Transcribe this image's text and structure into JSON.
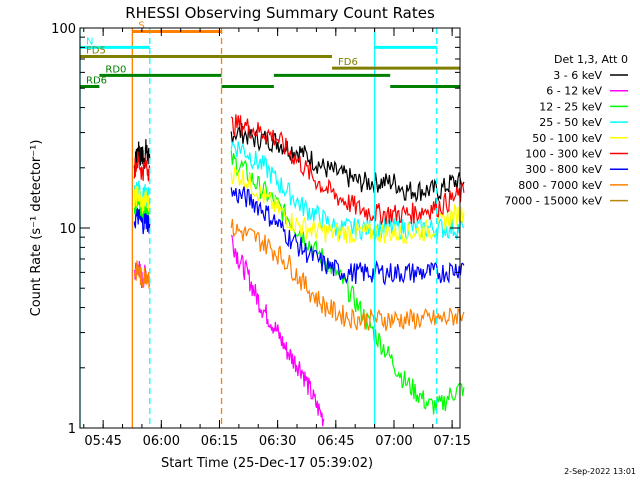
{
  "chart_data": {
    "type": "line",
    "title": "RHESSI Observing Summary Count Rates",
    "xlabel": "Start Time (25-Dec-17 05:39:02)",
    "ylabel": "Count Rate (s⁻¹ detector⁻¹)",
    "y_scale": "log",
    "ylim": [
      1,
      100
    ],
    "xlim_minutes_since_0539": [
      0,
      98
    ],
    "x_ticks": [
      "05:45",
      "06:00",
      "06:15",
      "06:30",
      "06:45",
      "07:00",
      "07:15"
    ],
    "y_ticks": [
      "1",
      "10",
      "100"
    ],
    "grid": false,
    "legend_title": "Det 1,3, Att 0",
    "legend_placement": "right",
    "series": [
      {
        "name": "3 - 6 keV",
        "color": "#000000",
        "segments": [
          {
            "x": [
              14,
              14.5,
              15,
              15.5,
              16,
              16.5,
              17,
              17.5,
              18
            ],
            "y": [
              20,
              23,
              25,
              22,
              24,
              21,
              25,
              23,
              22
            ]
          },
          {
            "x": [
              39,
              42,
              45,
              48,
              51,
              54,
              57,
              60,
              63,
              66,
              69,
              72,
              75,
              78,
              81,
              84,
              87,
              90,
              93,
              96,
              99
            ],
            "y": [
              30,
              30,
              28,
              28,
              27,
              25,
              24,
              22,
              20,
              19,
              18,
              17,
              17,
              17,
              17,
              15.5,
              15.5,
              15.5,
              15.5,
              17,
              17
            ]
          }
        ]
      },
      {
        "name": "6 - 12 keV",
        "color": "#ff00ff",
        "segments": [
          {
            "x": [
              14,
              15,
              16,
              17,
              18
            ],
            "y": [
              6,
              6.5,
              5.5,
              6,
              5.5
            ]
          },
          {
            "x": [
              39,
              41,
              43,
              45,
              47,
              49,
              51,
              53,
              55,
              57,
              59,
              61,
              63
            ],
            "y": [
              9,
              7,
              6,
              4.8,
              4,
              3.5,
              3,
              2.5,
              2.2,
              2,
              1.6,
              1.3,
              1.1
            ]
          }
        ]
      },
      {
        "name": "12 - 25 keV",
        "color": "#00ff00",
        "segments": [
          {
            "x": [
              14,
              15,
              16,
              17,
              18
            ],
            "y": [
              13,
              14,
              12,
              13,
              12
            ]
          },
          {
            "x": [
              39,
              42,
              45,
              48,
              51,
              54,
              57,
              60,
              63,
              66,
              69,
              72,
              75,
              78,
              81,
              84,
              87,
              90,
              93,
              96,
              99
            ],
            "y": [
              22,
              20,
              17,
              15,
              13,
              11,
              9.5,
              8,
              7,
              6,
              5,
              4,
              3.2,
              2.6,
              2.1,
              1.7,
              1.5,
              1.3,
              1.3,
              1.5,
              1.6
            ]
          }
        ]
      },
      {
        "name": "25 - 50 keV",
        "color": "#00ffff",
        "segments": [
          {
            "x": [
              14,
              15,
              16,
              17,
              18
            ],
            "y": [
              15,
              16,
              14,
              15,
              14
            ]
          },
          {
            "x": [
              39,
              42,
              45,
              48,
              51,
              54,
              57,
              60,
              63,
              66,
              69,
              72,
              75,
              78,
              81,
              84,
              87,
              90,
              93,
              96,
              99
            ],
            "y": [
              26,
              25,
              22,
              20,
              17,
              15,
              13,
              12,
              11,
              10,
              10,
              10,
              10,
              10,
              10,
              10,
              10,
              10,
              10,
              10,
              10
            ]
          }
        ]
      },
      {
        "name": "50 - 100 keV",
        "color": "#ffff00",
        "segments": [
          {
            "x": [
              14,
              15,
              16,
              17,
              18
            ],
            "y": [
              14,
              15,
              13,
              14,
              13
            ]
          },
          {
            "x": [
              39,
              42,
              45,
              48,
              51,
              54,
              57,
              60,
              63,
              66,
              69,
              72,
              75,
              78,
              81,
              84,
              87,
              90,
              93,
              96,
              99
            ],
            "y": [
              19,
              18,
              16,
              14,
              12.5,
              11,
              10.2,
              9.8,
              9.6,
              9.5,
              9.5,
              9.5,
              9.5,
              9.5,
              9.5,
              9.5,
              9.6,
              9.8,
              10.5,
              11.5,
              12
            ]
          }
        ]
      },
      {
        "name": "100 - 300 keV",
        "color": "#ff0000",
        "segments": [
          {
            "x": [
              14,
              15,
              16,
              17,
              18
            ],
            "y": [
              20,
              22,
              19,
              21,
              19
            ]
          },
          {
            "x": [
              39,
              42,
              45,
              48,
              51,
              54,
              57,
              60,
              63,
              66,
              69,
              72,
              75,
              78,
              81,
              84,
              87,
              90,
              93,
              96,
              99
            ],
            "y": [
              33,
              33,
              31,
              30,
              28,
              24,
              21,
              18,
              16,
              14.5,
              13.5,
              12.5,
              12,
              11.8,
              11.8,
              11.8,
              12,
              12.5,
              13,
              14,
              15
            ]
          }
        ]
      },
      {
        "name": "300 - 800 keV",
        "color": "#0000ff",
        "segments": [
          {
            "x": [
              14,
              15,
              16,
              17,
              18
            ],
            "y": [
              11,
              11.5,
              10.5,
              11,
              10.5
            ]
          },
          {
            "x": [
              39,
              42,
              45,
              48,
              51,
              54,
              57,
              60,
              63,
              66,
              69,
              72,
              75,
              78,
              81,
              84,
              87,
              90,
              93,
              96,
              99
            ],
            "y": [
              15,
              14.5,
              13.5,
              12,
              10.5,
              9,
              8,
              7.2,
              6.6,
              6.2,
              6,
              6,
              6,
              6,
              6,
              6,
              6,
              6,
              6,
              6.2,
              6.5
            ]
          }
        ]
      },
      {
        "name": "800 - 7000 keV",
        "color": "#ff8000",
        "segments": [
          {
            "x": [
              14,
              15,
              16,
              17,
              18
            ],
            "y": [
              6,
              6.2,
              5.5,
              6,
              5.6
            ]
          },
          {
            "x": [
              39,
              42,
              45,
              48,
              51,
              54,
              57,
              60,
              63,
              66,
              69,
              72,
              75,
              78,
              81,
              84,
              87,
              90,
              93,
              96,
              99
            ],
            "y": [
              10,
              9.5,
              9,
              8.3,
              7.5,
              6.6,
              5.5,
              4.7,
              4.1,
              3.8,
              3.6,
              3.5,
              3.5,
              3.5,
              3.5,
              3.5,
              3.5,
              3.5,
              3.5,
              3.6,
              3.8
            ]
          }
        ]
      },
      {
        "name": "7000 - 15000 keV",
        "color": "#b8860b",
        "segments": []
      }
    ],
    "flags": [
      {
        "label": "S",
        "color": "#ff8000",
        "segments": [
          [
            13.5,
            36.5
          ]
        ],
        "level": 96
      },
      {
        "label": "N",
        "color": "#00ffff",
        "segments": [
          [
            0,
            18
          ],
          [
            76,
            92
          ]
        ],
        "level": 80
      },
      {
        "label": "FD5",
        "color": "#808000",
        "segments": [
          [
            0,
            65
          ]
        ],
        "level": 72
      },
      {
        "label": "FD6",
        "color": "#808000",
        "segments": [
          [
            65,
            98
          ]
        ],
        "level": 63
      },
      {
        "label": "RD0",
        "color": "#008000",
        "segments": [
          [
            5,
            36.5
          ],
          [
            50,
            80
          ]
        ],
        "level": 58
      },
      {
        "label": "RD6",
        "color": "#008000",
        "segments": [
          [
            0,
            5
          ],
          [
            36.5,
            50
          ],
          [
            80,
            98
          ]
        ],
        "level": 51
      }
    ],
    "vlines": [
      {
        "x": 0,
        "color": "#00ffff",
        "dash": false
      },
      {
        "x": 13.5,
        "color": "#ff8000",
        "dash": false
      },
      {
        "x": 18,
        "color": "#00ffff",
        "dash": true
      },
      {
        "x": 36.5,
        "color": "#ff8000",
        "dash": true
      },
      {
        "x": 76,
        "color": "#00ffff",
        "dash": false
      },
      {
        "x": 92,
        "color": "#00ffff",
        "dash": true
      }
    ]
  },
  "timestamp": "2-Sep-2022 13:01"
}
